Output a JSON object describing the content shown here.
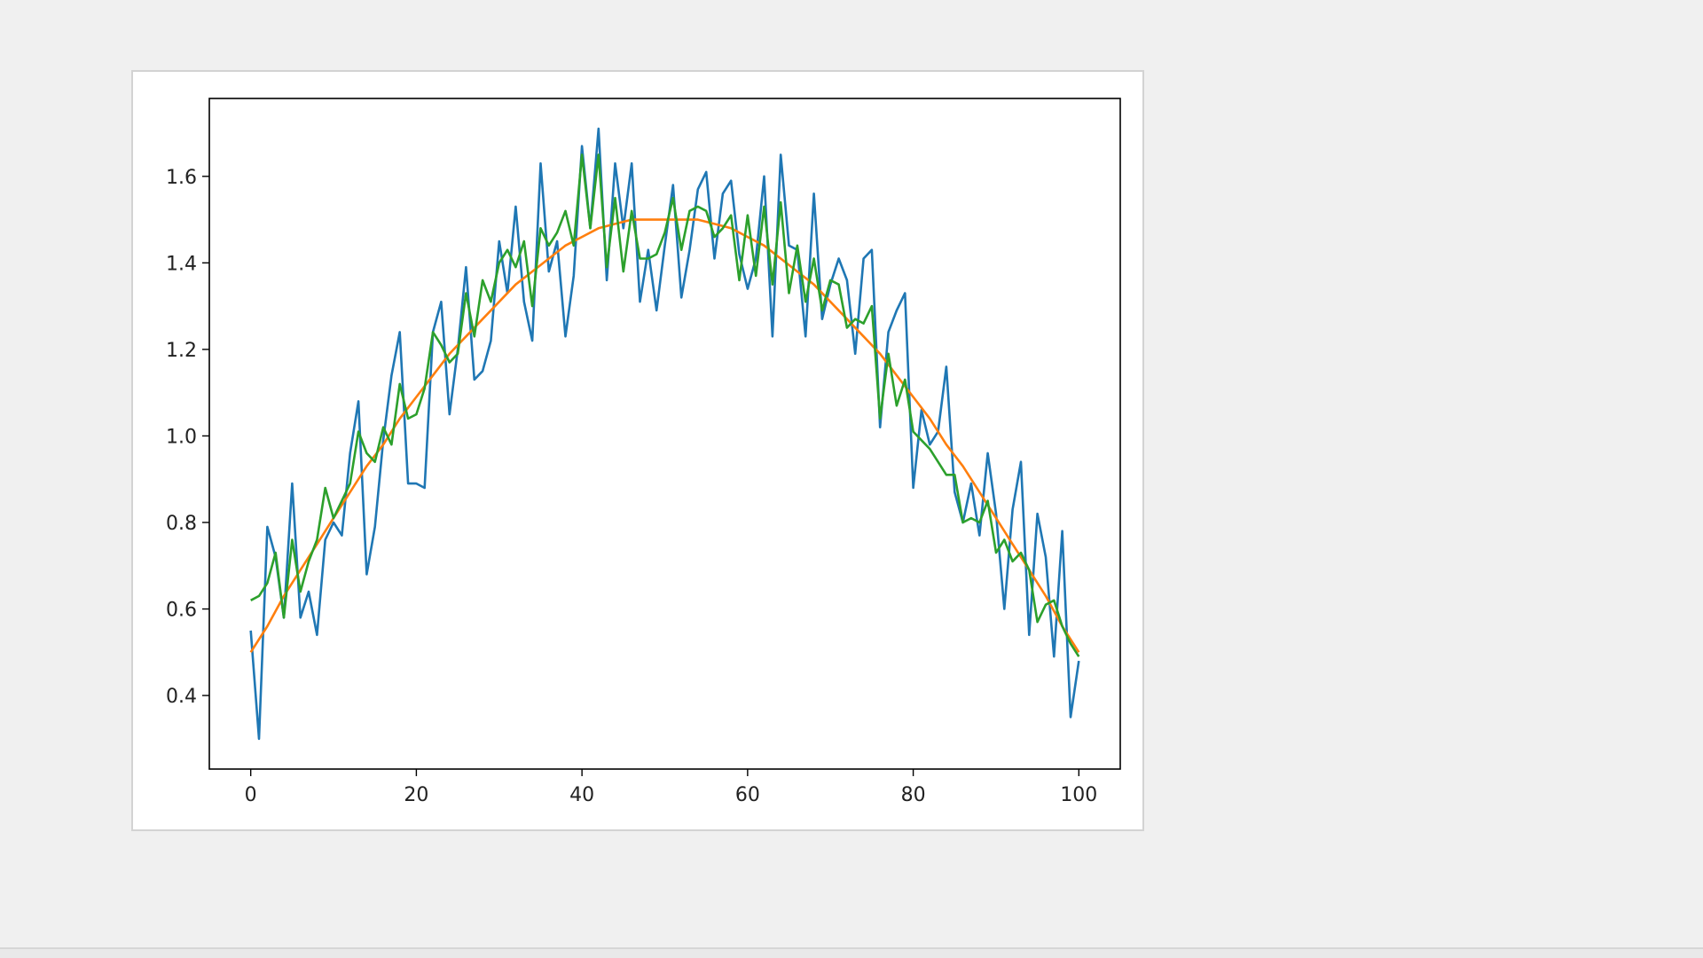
{
  "chart_data": {
    "type": "line",
    "title": "",
    "xlabel": "",
    "ylabel": "",
    "xlim": [
      -5,
      105
    ],
    "ylim": [
      0.23,
      1.78
    ],
    "grid": false,
    "legend": "none",
    "xticks": [
      0,
      20,
      40,
      60,
      80,
      100
    ],
    "yticks": [
      0.4,
      0.6,
      0.8,
      1.0,
      1.2,
      1.4,
      1.6
    ],
    "xtick_labels": [
      "0",
      "20",
      "40",
      "60",
      "80",
      "100"
    ],
    "ytick_labels": [
      "0.4",
      "0.6",
      "0.8",
      "1.0",
      "1.2",
      "1.4",
      "1.6"
    ],
    "series": [
      {
        "color": "#1f77b4",
        "x": [
          0,
          1,
          2,
          3,
          4,
          5,
          6,
          7,
          8,
          9,
          10,
          11,
          12,
          13,
          14,
          15,
          16,
          17,
          18,
          19,
          20,
          21,
          22,
          23,
          24,
          25,
          26,
          27,
          28,
          29,
          30,
          31,
          32,
          33,
          34,
          35,
          36,
          37,
          38,
          39,
          40,
          41,
          42,
          43,
          44,
          45,
          46,
          47,
          48,
          49,
          50,
          51,
          52,
          53,
          54,
          55,
          56,
          57,
          58,
          59,
          60,
          61,
          62,
          63,
          64,
          65,
          66,
          67,
          68,
          69,
          70,
          71,
          72,
          73,
          74,
          75,
          76,
          77,
          78,
          79,
          80,
          81,
          82,
          83,
          84,
          85,
          86,
          87,
          88,
          89,
          90,
          91,
          92,
          93,
          94,
          95,
          96,
          97,
          98,
          99,
          100
        ],
        "y": [
          0.55,
          0.3,
          0.79,
          0.72,
          0.58,
          0.89,
          0.58,
          0.64,
          0.54,
          0.76,
          0.8,
          0.77,
          0.96,
          1.08,
          0.68,
          0.79,
          0.99,
          1.14,
          1.24,
          0.89,
          0.89,
          0.88,
          1.24,
          1.31,
          1.05,
          1.2,
          1.39,
          1.13,
          1.15,
          1.22,
          1.45,
          1.33,
          1.53,
          1.31,
          1.22,
          1.63,
          1.38,
          1.45,
          1.23,
          1.37,
          1.67,
          1.48,
          1.71,
          1.36,
          1.63,
          1.48,
          1.63,
          1.31,
          1.43,
          1.29,
          1.44,
          1.58,
          1.32,
          1.43,
          1.57,
          1.61,
          1.41,
          1.56,
          1.59,
          1.42,
          1.34,
          1.41,
          1.6,
          1.23,
          1.65,
          1.44,
          1.43,
          1.23,
          1.56,
          1.27,
          1.35,
          1.41,
          1.36,
          1.19,
          1.41,
          1.43,
          1.02,
          1.24,
          1.29,
          1.33,
          0.88,
          1.06,
          0.98,
          1.01,
          1.16,
          0.87,
          0.8,
          0.89,
          0.77,
          0.96,
          0.82,
          0.6,
          0.83,
          0.94,
          0.54,
          0.82,
          0.72,
          0.49,
          0.78,
          0.35,
          0.48
        ]
      },
      {
        "color": "#ff7f0e",
        "x": [
          0,
          2,
          4,
          6,
          8,
          10,
          12,
          14,
          16,
          18,
          20,
          22,
          24,
          26,
          28,
          30,
          32,
          34,
          36,
          38,
          40,
          42,
          44,
          46,
          48,
          50,
          52,
          54,
          56,
          58,
          60,
          62,
          64,
          66,
          68,
          70,
          72,
          74,
          76,
          78,
          80,
          82,
          84,
          86,
          88,
          90,
          92,
          94,
          96,
          98,
          100
        ],
        "y": [
          0.5,
          0.56,
          0.63,
          0.69,
          0.75,
          0.81,
          0.87,
          0.93,
          0.98,
          1.04,
          1.09,
          1.14,
          1.19,
          1.23,
          1.27,
          1.31,
          1.35,
          1.38,
          1.41,
          1.44,
          1.46,
          1.48,
          1.49,
          1.5,
          1.5,
          1.5,
          1.5,
          1.5,
          1.49,
          1.48,
          1.46,
          1.44,
          1.41,
          1.38,
          1.35,
          1.31,
          1.27,
          1.23,
          1.19,
          1.14,
          1.09,
          1.04,
          0.98,
          0.93,
          0.87,
          0.81,
          0.75,
          0.69,
          0.63,
          0.56,
          0.5
        ]
      },
      {
        "color": "#2ca02c",
        "x": [
          0,
          1,
          2,
          3,
          4,
          5,
          6,
          7,
          8,
          9,
          10,
          11,
          12,
          13,
          14,
          15,
          16,
          17,
          18,
          19,
          20,
          21,
          22,
          23,
          24,
          25,
          26,
          27,
          28,
          29,
          30,
          31,
          32,
          33,
          34,
          35,
          36,
          37,
          38,
          39,
          40,
          41,
          42,
          43,
          44,
          45,
          46,
          47,
          48,
          49,
          50,
          51,
          52,
          53,
          54,
          55,
          56,
          57,
          58,
          59,
          60,
          61,
          62,
          63,
          64,
          65,
          66,
          67,
          68,
          69,
          70,
          71,
          72,
          73,
          74,
          75,
          76,
          77,
          78,
          79,
          80,
          81,
          82,
          83,
          84,
          85,
          86,
          87,
          88,
          89,
          90,
          91,
          92,
          93,
          94,
          95,
          96,
          97,
          98,
          99,
          100
        ],
        "y": [
          0.62,
          0.63,
          0.66,
          0.73,
          0.58,
          0.76,
          0.64,
          0.71,
          0.76,
          0.88,
          0.81,
          0.85,
          0.89,
          1.01,
          0.96,
          0.94,
          1.02,
          0.98,
          1.12,
          1.04,
          1.05,
          1.11,
          1.24,
          1.21,
          1.17,
          1.19,
          1.33,
          1.23,
          1.36,
          1.31,
          1.4,
          1.43,
          1.39,
          1.45,
          1.3,
          1.48,
          1.44,
          1.47,
          1.52,
          1.44,
          1.65,
          1.48,
          1.65,
          1.39,
          1.55,
          1.38,
          1.52,
          1.41,
          1.41,
          1.42,
          1.47,
          1.55,
          1.43,
          1.52,
          1.53,
          1.52,
          1.46,
          1.48,
          1.51,
          1.36,
          1.51,
          1.37,
          1.53,
          1.35,
          1.54,
          1.33,
          1.44,
          1.31,
          1.41,
          1.29,
          1.36,
          1.35,
          1.25,
          1.27,
          1.26,
          1.3,
          1.04,
          1.19,
          1.07,
          1.13,
          1.01,
          0.99,
          0.97,
          0.94,
          0.91,
          0.91,
          0.8,
          0.81,
          0.8,
          0.85,
          0.73,
          0.76,
          0.71,
          0.73,
          0.69,
          0.57,
          0.61,
          0.62,
          0.56,
          0.52,
          0.49
        ]
      }
    ]
  }
}
